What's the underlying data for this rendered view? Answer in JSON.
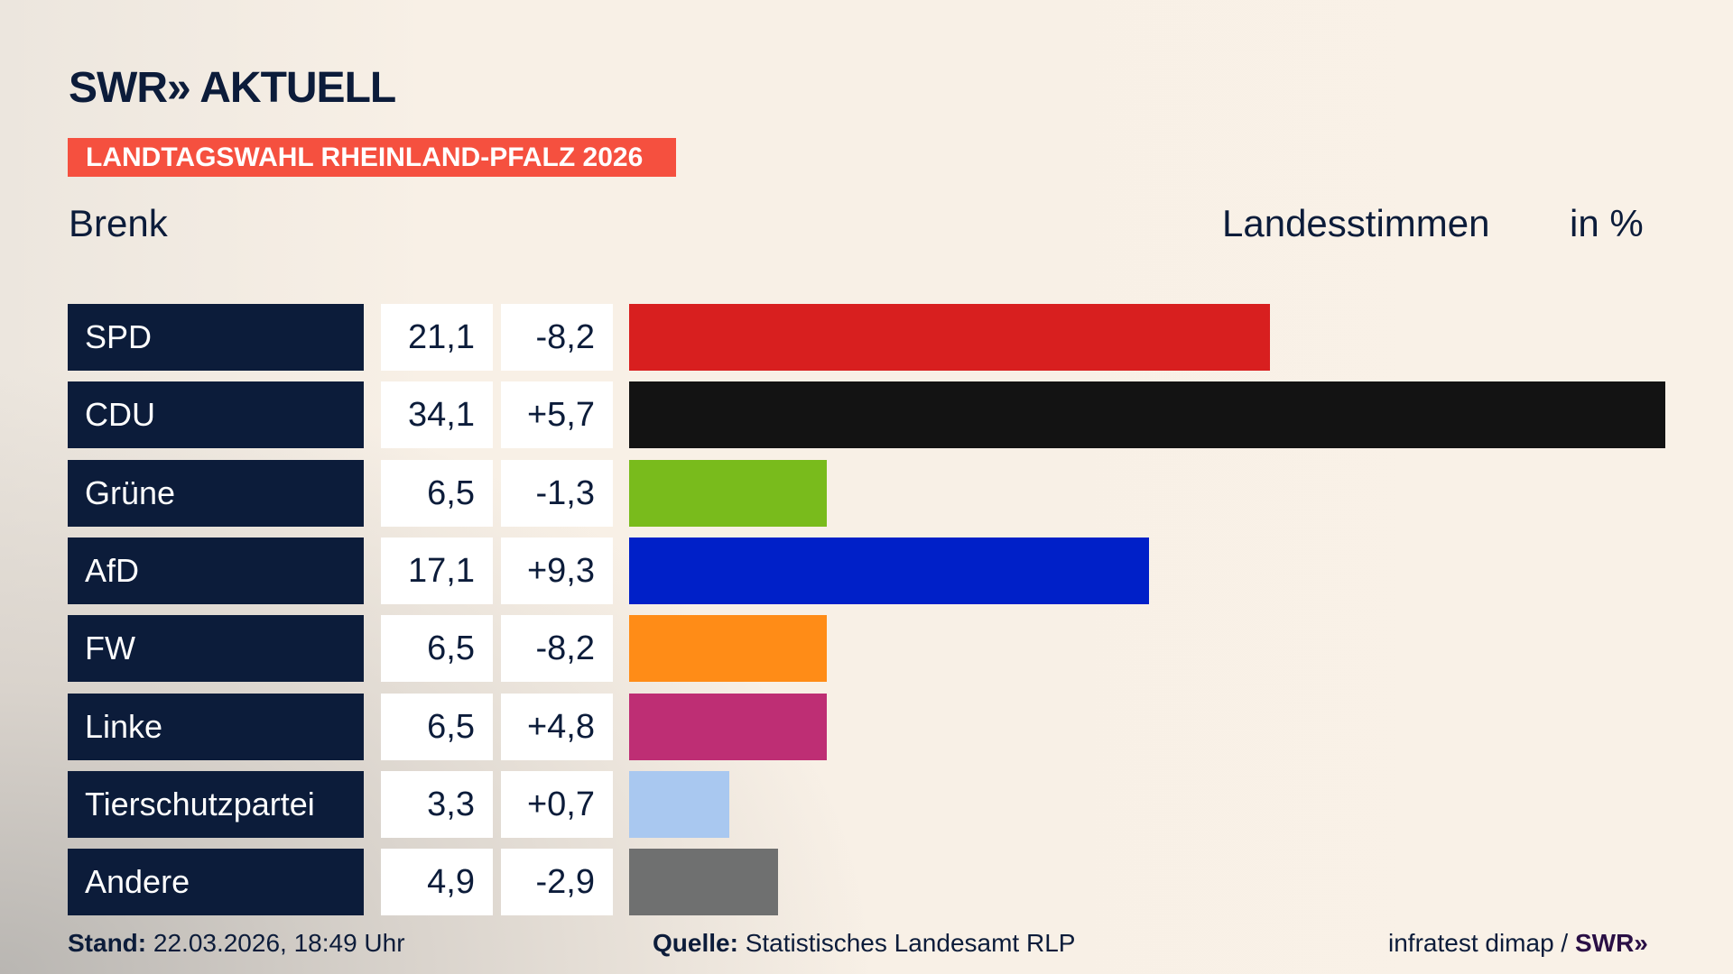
{
  "header": {
    "logo": "SWR» AKTUELL",
    "banner": "LANDTAGSWAHL RHEINLAND-PFALZ 2026",
    "region": "Brenk",
    "measure": "Landesstimmen",
    "unit": "in %"
  },
  "chart_data": {
    "type": "bar",
    "orientation": "horizontal",
    "categories": [
      "SPD",
      "CDU",
      "Grüne",
      "AfD",
      "FW",
      "Linke",
      "Tierschutzpartei",
      "Andere"
    ],
    "values": [
      21.1,
      34.1,
      6.5,
      17.1,
      6.5,
      6.5,
      3.3,
      4.9
    ],
    "value_labels": [
      "21,1",
      "34,1",
      "6,5",
      "17,1",
      "6,5",
      "6,5",
      "3,3",
      "4,9"
    ],
    "changes": [
      "-8,2",
      "+5,7",
      "-1,3",
      "+9,3",
      "-8,2",
      "+4,8",
      "+0,7",
      "-2,9"
    ],
    "colors": [
      "#d81f1f",
      "#131313",
      "#79bb1c",
      "#0020c8",
      "#ff8c17",
      "#be2e74",
      "#a9c8f0",
      "#6f7070"
    ],
    "xlim": [
      0,
      34.1
    ]
  },
  "footer": {
    "stand_label": "Stand:",
    "stand_value": "22.03.2026, 18:49 Uhr",
    "source_label": "Quelle:",
    "source_value": "Statistisches Landesamt RLP",
    "credit": "infratest dimap /",
    "credit_logo": "SWR»"
  }
}
